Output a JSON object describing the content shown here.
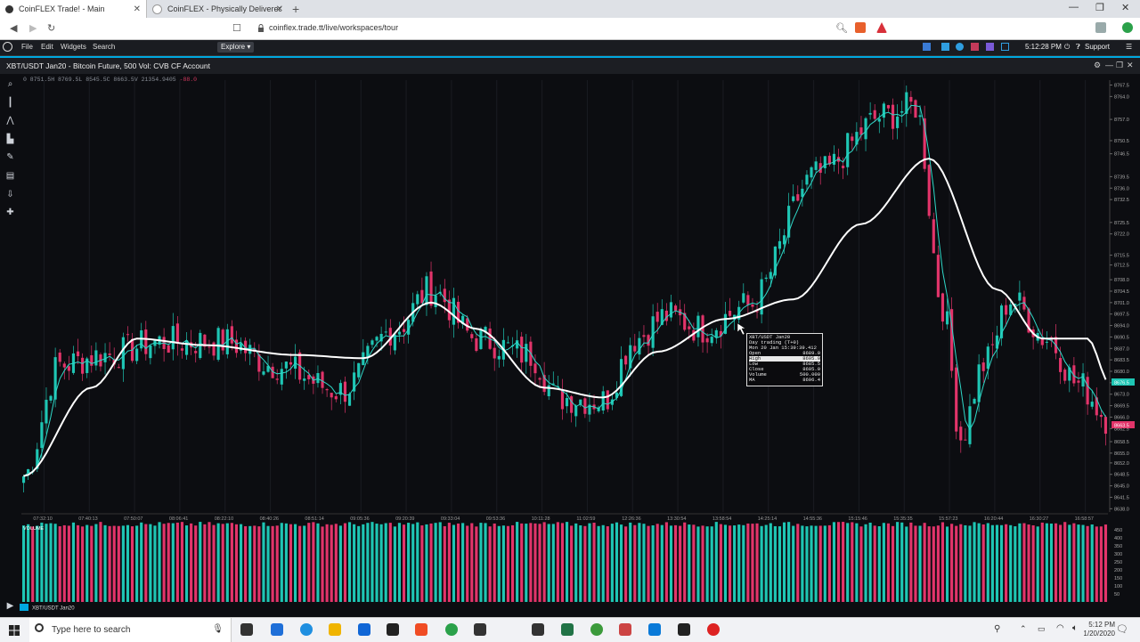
{
  "browser": {
    "tabs": [
      {
        "title": "CoinFLEX Trade! - Main",
        "active": true
      },
      {
        "title": "CoinFLEX - Physically Delivered Cr",
        "active": false
      }
    ],
    "url": "coinflex.trade.tt/live/workspaces/tour",
    "window_controls": [
      "—",
      "❐",
      "✕"
    ]
  },
  "app_menu": {
    "items": [
      "File",
      "Edit",
      "Widgets",
      "Search"
    ],
    "explore": "Explore ▾",
    "time": "5:12:28 PM",
    "support": "Support"
  },
  "chart_window": {
    "title": "XBT/USDT Jan20 - Bitcoin Future, 500 Vol: CVB CF Account",
    "ohlc_text": "0 8751.5H 8769.5L 8545.5C 8663.5V 21354.9405",
    "ohlc_change": "-88.0"
  },
  "tooltip": {
    "rows": [
      [
        "XBT/USDT Jan20",
        ""
      ],
      [
        "Day trading (T+0)",
        ""
      ],
      [
        "Mon 20 Jan 15:39:39.412",
        ""
      ],
      [
        "Open",
        "8689.0"
      ],
      [
        "High",
        "8695.0"
      ],
      [
        "Low",
        "8685.5"
      ],
      [
        "Close",
        "8695.0"
      ],
      [
        "Volume",
        "500.000"
      ],
      [
        "MA",
        "8696.4"
      ]
    ]
  },
  "chart_data": {
    "type": "candlestick",
    "y_ticks": [
      "8767.5",
      "8764.0",
      "8757.0",
      "8750.5",
      "8746.5",
      "8739.5",
      "8736.0",
      "8732.5",
      "8725.5",
      "8722.0",
      "8715.5",
      "8712.5",
      "8708.0",
      "8704.5",
      "8701.0",
      "8697.5",
      "8694.0",
      "8690.5",
      "8687.0",
      "8683.5",
      "8680.0",
      "8676.5",
      "8673.0",
      "8669.5",
      "8666.0",
      "8662.5",
      "8658.5",
      "8655.0",
      "8652.0",
      "8648.5",
      "8645.0",
      "8641.5",
      "8638.0"
    ],
    "ylim": [
      8637,
      8769
    ],
    "x_ticks": [
      "07:32:10",
      "07:40:13",
      "07:50:07",
      "08:06:41",
      "08:22:10",
      "08:40:26",
      "08:51:14",
      "09:05:36",
      "09:20:39",
      "09:33:04",
      "09:53:36",
      "10:11:28",
      "11:02:59",
      "12:26:36",
      "13:30:54",
      "13:58:54",
      "14:25:14",
      "14:55:36",
      "15:15:46",
      "15:35:35",
      "15:57:23",
      "16:20:44",
      "16:30:27",
      "16:58:57"
    ],
    "price_labels": {
      "last": "8663.5",
      "ma": "8676.5"
    },
    "close_anchors": [
      [
        0,
        8648
      ],
      [
        8,
        8682
      ],
      [
        18,
        8685
      ],
      [
        30,
        8689
      ],
      [
        45,
        8689
      ],
      [
        55,
        8682
      ],
      [
        70,
        8674
      ],
      [
        82,
        8693
      ],
      [
        90,
        8705
      ],
      [
        100,
        8690
      ],
      [
        112,
        8685
      ],
      [
        118,
        8672
      ],
      [
        128,
        8671
      ],
      [
        135,
        8690
      ],
      [
        142,
        8697
      ],
      [
        150,
        8693
      ],
      [
        160,
        8700
      ],
      [
        175,
        8740
      ],
      [
        190,
        8758
      ],
      [
        197,
        8761
      ],
      [
        203,
        8700
      ],
      [
        207,
        8660
      ],
      [
        212,
        8682
      ],
      [
        218,
        8702
      ],
      [
        226,
        8690
      ],
      [
        233,
        8676
      ],
      [
        240,
        8665
      ]
    ],
    "ma_anchors": [
      [
        0,
        8648
      ],
      [
        15,
        8675
      ],
      [
        25,
        8690
      ],
      [
        40,
        8688
      ],
      [
        60,
        8685
      ],
      [
        75,
        8684
      ],
      [
        90,
        8701
      ],
      [
        100,
        8693
      ],
      [
        115,
        8675
      ],
      [
        128,
        8672
      ],
      [
        140,
        8686
      ],
      [
        155,
        8696
      ],
      [
        170,
        8702
      ],
      [
        185,
        8725
      ],
      [
        200,
        8745
      ],
      [
        215,
        8705
      ],
      [
        225,
        8690
      ],
      [
        235,
        8690
      ],
      [
        240,
        8676
      ]
    ],
    "candle_count": 240,
    "volume": {
      "label": "VOLUME",
      "y_ticks": [
        "450",
        "400",
        "350",
        "300",
        "250",
        "200",
        "150",
        "100",
        "50"
      ],
      "ylim": [
        0,
        500
      ]
    },
    "symbol_footer": "XBT/USDT Jan20",
    "colors": {
      "up": "#1ec6b4",
      "down": "#e2346a",
      "ma_long": "#ffffff",
      "ma_short": "#2fd8c8"
    }
  },
  "taskbar": {
    "search_placeholder": "Type here to search",
    "time": "5:12 PM",
    "date": "1/20/2020"
  }
}
